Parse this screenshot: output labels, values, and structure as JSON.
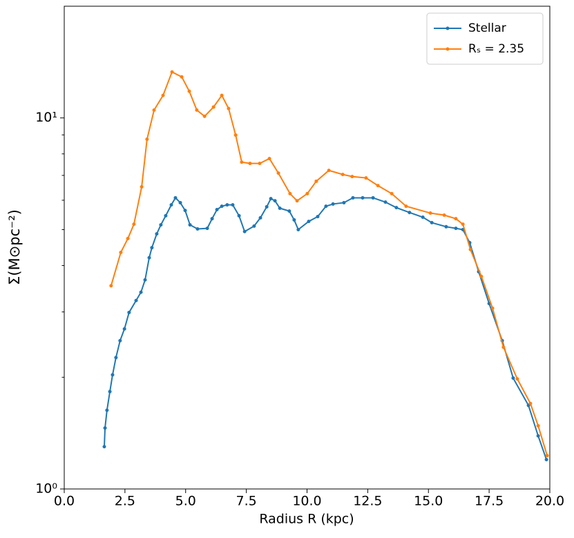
{
  "chart_data": {
    "type": "line",
    "xlabel": "Radius R (kpc)",
    "ylabel": "Σ(M⊙pc⁻²)",
    "xlim": [
      0,
      20
    ],
    "ylim": [
      1,
      20
    ],
    "yscale": "log",
    "grid": false,
    "legend": "upper right",
    "xticks": [
      {
        "value": 0,
        "label": "0.0"
      },
      2.5,
      {
        "value": 5,
        "label": "5.0"
      },
      7.5,
      {
        "value": 10,
        "label": "10.0"
      },
      12.5,
      {
        "value": 15,
        "label": "15.0"
      },
      17.5,
      {
        "value": 20,
        "label": "20.0"
      }
    ],
    "yticks": [
      {
        "value": 1,
        "label": "10⁰"
      },
      {
        "value": 10,
        "label": "10¹"
      }
    ],
    "series": [
      {
        "name": "Stellar",
        "color": "#1f77b4",
        "x": [
          1.65,
          1.68,
          1.76,
          1.88,
          1.99,
          2.13,
          2.3,
          2.48,
          2.67,
          2.96,
          3.16,
          3.33,
          3.5,
          3.61,
          3.81,
          3.98,
          4.18,
          4.41,
          4.58,
          4.78,
          4.98,
          5.18,
          5.49,
          5.89,
          6.09,
          6.29,
          6.49,
          6.71,
          6.94,
          7.2,
          7.43,
          7.82,
          8.08,
          8.34,
          8.51,
          8.68,
          8.88,
          9.27,
          9.47,
          9.64,
          10.07,
          10.44,
          10.78,
          11.07,
          11.52,
          11.89,
          12.29,
          12.72,
          13.23,
          13.68,
          14.22,
          14.77,
          15.14,
          15.73,
          16.13,
          16.42,
          16.7,
          17.07,
          17.5,
          18.04,
          18.49,
          19.12,
          19.52,
          19.86
        ],
        "values": [
          1.3,
          1.46,
          1.63,
          1.83,
          2.03,
          2.26,
          2.51,
          2.7,
          2.99,
          3.22,
          3.39,
          3.66,
          4.2,
          4.47,
          4.87,
          5.15,
          5.45,
          5.83,
          6.09,
          5.91,
          5.63,
          5.15,
          5.02,
          5.04,
          5.35,
          5.66,
          5.78,
          5.83,
          5.83,
          5.45,
          4.94,
          5.11,
          5.38,
          5.76,
          6.06,
          5.98,
          5.71,
          5.61,
          5.31,
          5.0,
          5.26,
          5.42,
          5.78,
          5.86,
          5.91,
          6.09,
          6.09,
          6.09,
          5.93,
          5.73,
          5.56,
          5.4,
          5.22,
          5.09,
          5.04,
          5.0,
          4.61,
          3.85,
          3.16,
          2.51,
          1.99,
          1.68,
          1.39,
          1.2
        ]
      },
      {
        "name": "Rₛ = 2.35",
        "color": "#ff7f0e",
        "x": [
          1.93,
          2.33,
          2.62,
          2.87,
          3.19,
          3.41,
          3.7,
          4.07,
          4.44,
          4.84,
          5.15,
          5.46,
          5.78,
          6.15,
          6.49,
          6.77,
          7.06,
          7.31,
          7.65,
          8.05,
          8.45,
          8.82,
          9.3,
          9.59,
          10.01,
          10.38,
          10.9,
          11.47,
          11.86,
          12.43,
          12.92,
          13.49,
          14.08,
          15.08,
          15.65,
          16.13,
          16.42,
          16.73,
          17.18,
          17.64,
          18.09,
          18.66,
          19.2,
          19.52,
          19.89
        ],
        "values": [
          3.53,
          4.34,
          4.73,
          5.17,
          6.52,
          8.76,
          10.5,
          11.5,
          13.3,
          12.9,
          11.8,
          10.5,
          10.1,
          10.7,
          11.5,
          10.6,
          8.99,
          7.6,
          7.54,
          7.54,
          7.77,
          7.1,
          6.25,
          5.98,
          6.25,
          6.75,
          7.22,
          7.04,
          6.95,
          6.89,
          6.57,
          6.25,
          5.78,
          5.54,
          5.47,
          5.35,
          5.17,
          4.42,
          3.74,
          3.07,
          2.41,
          1.98,
          1.7,
          1.48,
          1.23
        ]
      }
    ]
  }
}
